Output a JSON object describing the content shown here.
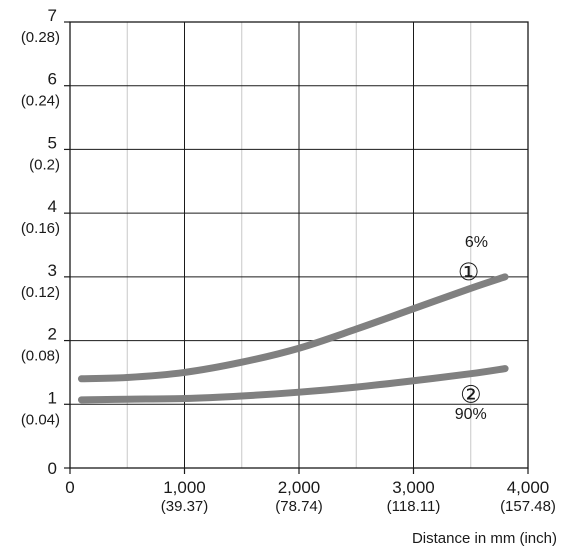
{
  "chart_data": {
    "type": "line",
    "title": "",
    "ylabel": "",
    "xlabel": "Distance in mm (inch)",
    "xlim": [
      0,
      4000
    ],
    "ylim": [
      0,
      7
    ],
    "grid": true,
    "x_ticks": [
      {
        "value": 0,
        "label": "0",
        "sub": ""
      },
      {
        "value": 1000,
        "label": "1,000",
        "sub": "(39.37)"
      },
      {
        "value": 2000,
        "label": "2,000",
        "sub": "(78.74)"
      },
      {
        "value": 3000,
        "label": "3,000",
        "sub": "(118.11)"
      },
      {
        "value": 4000,
        "label": "4,000",
        "sub": "(157.48)"
      }
    ],
    "x_minor_grid": [
      500,
      1500,
      2500,
      3500
    ],
    "y_ticks": [
      {
        "value": 0,
        "label": "0",
        "sub": ""
      },
      {
        "value": 1,
        "label": "1",
        "sub": "(0.04)"
      },
      {
        "value": 2,
        "label": "2",
        "sub": "(0.08)"
      },
      {
        "value": 3,
        "label": "3",
        "sub": "(0.12)"
      },
      {
        "value": 4,
        "label": "4",
        "sub": "(0.16)"
      },
      {
        "value": 5,
        "label": "5",
        "sub": "(0.2)"
      },
      {
        "value": 6,
        "label": "6",
        "sub": "(0.24)"
      },
      {
        "value": 7,
        "label": "7",
        "sub": "(0.28)"
      }
    ],
    "series": [
      {
        "marker": "①",
        "annotation": "6%",
        "color": "#808080",
        "x": [
          100,
          500,
          1000,
          1500,
          2000,
          2500,
          3000,
          3500,
          3800
        ],
        "y": [
          1.4,
          1.42,
          1.5,
          1.66,
          1.88,
          2.18,
          2.5,
          2.82,
          3.0
        ]
      },
      {
        "marker": "②",
        "annotation": "90%",
        "color": "#808080",
        "x": [
          100,
          500,
          1000,
          1500,
          2000,
          2500,
          3000,
          3500,
          3800
        ],
        "y": [
          1.07,
          1.08,
          1.09,
          1.13,
          1.19,
          1.27,
          1.37,
          1.48,
          1.56
        ]
      }
    ]
  }
}
